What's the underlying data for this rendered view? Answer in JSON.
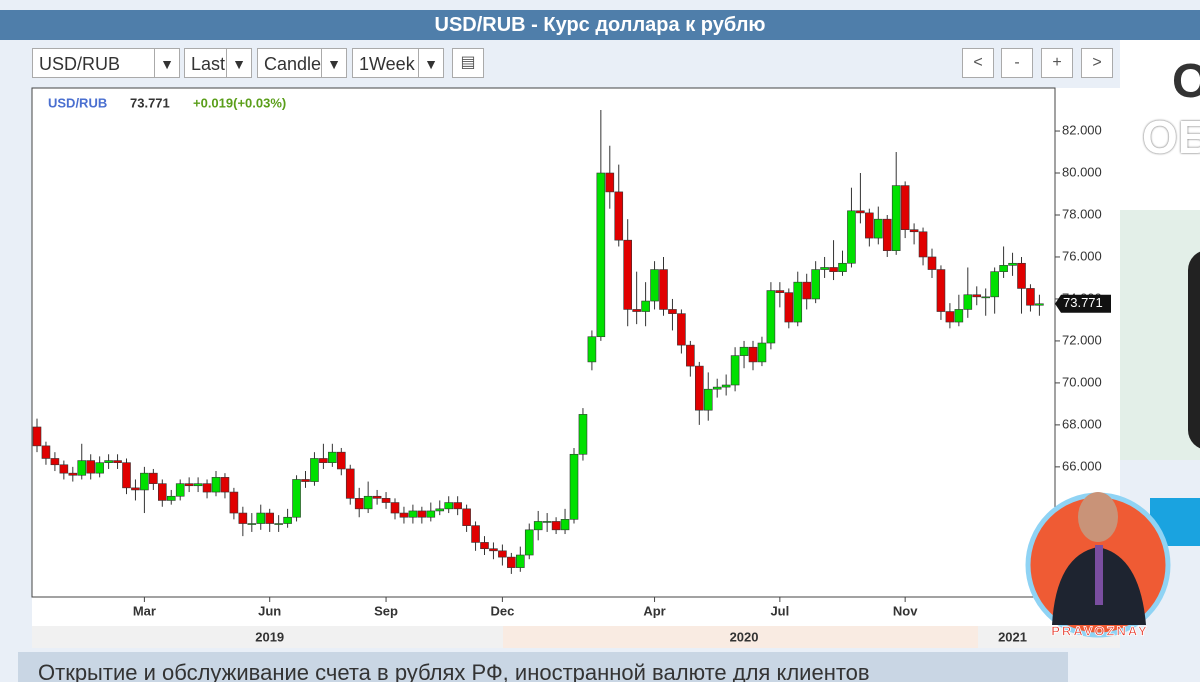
{
  "page_title": "USD/RUB - Курс доллара к рублю",
  "toolbar": {
    "symbol": "USD/RUB",
    "field": "Last",
    "style": "Candle",
    "period": "1Week",
    "buttons": [
      "<",
      "-",
      "+",
      ">"
    ]
  },
  "legend": {
    "symbol": "USD/RUB",
    "last": "73.771",
    "change": "+0.019(+0.03%)"
  },
  "side_ad": {
    "line1": "О",
    "line2": "ОБС"
  },
  "bottom_banner": "Открытие и обслуживание счета в рублях РФ, иностранной валюте для клиентов",
  "watermark": "PRAVOZNAY",
  "chart_data": {
    "type": "candlestick",
    "up_color": "#00e000",
    "down_color": "#e00000",
    "ylim": [
      59.8,
      84.05
    ],
    "yticks": [
      {
        "value": 66,
        "label": "66.000"
      },
      {
        "value": 68,
        "label": "68.000"
      },
      {
        "value": 70,
        "label": "70.000"
      },
      {
        "value": 72,
        "label": "72.000"
      },
      {
        "value": 74,
        "label": "74.000"
      },
      {
        "value": 76,
        "label": "76.000"
      },
      {
        "value": 78,
        "label": "78.000"
      },
      {
        "value": 80,
        "label": "80.000"
      },
      {
        "value": 82,
        "label": "82.000"
      }
    ],
    "categories": [
      null,
      null,
      null,
      null,
      null,
      null,
      null,
      null,
      null,
      null,
      null,
      null,
      "Mar",
      null,
      null,
      null,
      null,
      null,
      null,
      null,
      null,
      null,
      null,
      null,
      null,
      null,
      "Jun",
      null,
      null,
      null,
      null,
      null,
      null,
      null,
      null,
      null,
      null,
      null,
      null,
      "Sep",
      null,
      null,
      null,
      null,
      null,
      null,
      null,
      null,
      null,
      null,
      null,
      null,
      "Dec",
      null,
      null,
      null,
      null,
      null,
      null,
      null,
      null,
      null,
      null,
      null,
      null,
      null,
      null,
      null,
      null,
      "Apr",
      null,
      null,
      null,
      null,
      null,
      null,
      null,
      null,
      null,
      null,
      null,
      null,
      null,
      "Jul",
      null,
      null,
      null,
      null,
      null,
      null,
      null,
      null,
      null,
      null,
      null,
      null,
      null,
      "Nov",
      null,
      null,
      null,
      null,
      null,
      null,
      null,
      null,
      null,
      null,
      null,
      null,
      null,
      null,
      null
    ],
    "year_categories": [
      null,
      null,
      null,
      null,
      null,
      null,
      null,
      null,
      null,
      null,
      null,
      null,
      null,
      null,
      null,
      null,
      null,
      null,
      null,
      null,
      null,
      null,
      null,
      null,
      null,
      null,
      "2019",
      null,
      null,
      null,
      null,
      null,
      null,
      null,
      null,
      null,
      null,
      null,
      null,
      null,
      null,
      null,
      null,
      null,
      null,
      null,
      null,
      null,
      null,
      null,
      null,
      null,
      null,
      null,
      null,
      null,
      null,
      null,
      null,
      null,
      null,
      null,
      null,
      null,
      null,
      null,
      null,
      null,
      null,
      null,
      null,
      null,
      null,
      null,
      null,
      null,
      null,
      null,
      null,
      "2020",
      null,
      null,
      null,
      null,
      null,
      null,
      null,
      null,
      null,
      null,
      null,
      null,
      null,
      null,
      null,
      null,
      null,
      null,
      null,
      null,
      null,
      null,
      null,
      null,
      null,
      null,
      null,
      null,
      null,
      "2021",
      null,
      null,
      null
    ],
    "open": [
      67.9,
      67.0,
      66.4,
      66.1,
      65.7,
      65.6,
      66.3,
      65.7,
      66.2,
      66.3,
      66.2,
      65.0,
      64.9,
      65.7,
      65.2,
      64.4,
      64.6,
      65.2,
      65.1,
      65.2,
      64.8,
      65.5,
      64.8,
      63.8,
      63.3,
      63.3,
      63.8,
      63.3,
      63.3,
      63.6,
      65.4,
      65.3,
      66.4,
      66.2,
      66.7,
      65.9,
      64.5,
      64.0,
      64.6,
      64.5,
      64.3,
      63.8,
      63.6,
      63.9,
      63.6,
      63.9,
      64.0,
      64.3,
      64.0,
      63.2,
      62.4,
      62.1,
      62.0,
      61.7,
      61.2,
      61.8,
      63.0,
      63.4,
      63.4,
      63.0,
      63.5,
      66.6,
      71.0,
      72.2,
      80.0,
      79.1,
      76.8,
      73.5,
      73.4,
      73.9,
      75.4,
      73.5,
      73.3,
      71.8,
      70.8,
      68.7,
      69.7,
      69.8,
      69.9,
      71.3,
      71.7,
      71.0,
      71.9,
      74.4,
      74.3,
      72.9,
      74.8,
      74.0,
      75.4,
      75.5,
      75.3,
      75.7,
      78.2,
      78.1,
      76.9,
      77.8,
      76.3,
      79.4,
      77.3,
      77.2,
      76.0,
      75.4,
      73.4,
      72.9,
      73.5,
      74.2,
      74.1,
      74.1,
      75.3,
      75.6,
      75.7,
      74.5,
      73.7
    ],
    "high": [
      68.3,
      67.2,
      66.7,
      66.3,
      66.0,
      67.1,
      66.6,
      66.5,
      66.6,
      66.6,
      66.4,
      65.4,
      66.0,
      65.9,
      65.4,
      64.9,
      65.4,
      65.5,
      65.5,
      65.4,
      65.8,
      65.7,
      65.0,
      64.1,
      63.8,
      64.2,
      64.0,
      63.7,
      64.0,
      65.6,
      65.8,
      66.7,
      67.1,
      67.1,
      66.9,
      66.1,
      65.0,
      65.3,
      64.9,
      64.8,
      64.5,
      64.1,
      64.2,
      64.1,
      64.3,
      64.4,
      64.6,
      64.6,
      64.2,
      63.4,
      62.7,
      62.4,
      62.3,
      61.9,
      62.2,
      63.3,
      63.9,
      63.8,
      63.6,
      64.0,
      66.9,
      68.8,
      72.5,
      83.0,
      81.3,
      80.4,
      77.8,
      75.3,
      74.8,
      75.8,
      76.0,
      74.0,
      73.5,
      72.0,
      71.0,
      70.5,
      70.2,
      70.4,
      71.7,
      72.0,
      72.0,
      72.2,
      74.8,
      74.8,
      74.5,
      75.3,
      75.2,
      75.8,
      76.0,
      76.8,
      76.3,
      79.3,
      80.0,
      78.3,
      78.4,
      78.0,
      81.0,
      79.6,
      77.6,
      77.4,
      76.4,
      75.6,
      73.8,
      74.2,
      75.5,
      74.6,
      74.5,
      75.5,
      76.5,
      76.2,
      76.0,
      74.7,
      74.2
    ],
    "low": [
      66.7,
      66.1,
      65.8,
      65.4,
      65.3,
      65.4,
      65.4,
      65.5,
      65.9,
      65.9,
      64.7,
      64.4,
      63.8,
      64.9,
      64.1,
      64.2,
      64.4,
      64.8,
      64.8,
      64.5,
      64.6,
      64.5,
      63.5,
      62.7,
      62.9,
      63.0,
      62.9,
      62.9,
      63.1,
      63.4,
      65.0,
      65.1,
      65.9,
      66.0,
      65.6,
      64.2,
      63.6,
      63.8,
      64.2,
      64.0,
      63.5,
      63.3,
      63.3,
      63.3,
      63.4,
      63.7,
      63.8,
      63.7,
      62.9,
      62.0,
      61.8,
      61.6,
      61.3,
      60.9,
      61.0,
      61.6,
      62.5,
      62.9,
      62.8,
      62.8,
      63.3,
      66.3,
      70.6,
      72.0,
      78.3,
      76.5,
      72.7,
      72.8,
      72.7,
      73.5,
      73.2,
      72.5,
      71.4,
      70.3,
      68.0,
      68.2,
      69.3,
      69.4,
      69.6,
      70.7,
      70.6,
      70.8,
      71.6,
      73.6,
      72.6,
      72.7,
      73.5,
      73.8,
      75.0,
      74.9,
      75.1,
      75.5,
      77.6,
      76.5,
      76.6,
      76.0,
      76.1,
      76.9,
      76.6,
      75.6,
      75.0,
      73.0,
      72.6,
      72.7,
      73.1,
      73.7,
      73.2,
      73.3,
      75.0,
      75.1,
      73.3,
      73.4,
      73.2
    ],
    "close": [
      67.0,
      66.4,
      66.1,
      65.7,
      65.6,
      66.3,
      65.7,
      66.2,
      66.3,
      66.2,
      65.0,
      64.9,
      65.7,
      65.2,
      64.4,
      64.6,
      65.2,
      65.1,
      65.2,
      64.8,
      65.5,
      64.8,
      63.8,
      63.3,
      63.3,
      63.8,
      63.3,
      63.3,
      63.6,
      65.4,
      65.3,
      66.4,
      66.2,
      66.7,
      65.9,
      64.5,
      64.0,
      64.6,
      64.5,
      64.3,
      63.8,
      63.6,
      63.9,
      63.6,
      63.9,
      64.0,
      64.3,
      64.0,
      63.2,
      62.4,
      62.1,
      62.0,
      61.7,
      61.2,
      61.8,
      63.0,
      63.4,
      63.4,
      63.0,
      63.5,
      66.6,
      68.5,
      72.2,
      80.0,
      79.1,
      76.8,
      73.5,
      73.4,
      73.9,
      75.4,
      73.5,
      73.3,
      71.8,
      70.8,
      68.7,
      69.7,
      69.8,
      69.9,
      71.3,
      71.7,
      71.0,
      71.9,
      74.4,
      74.3,
      72.9,
      74.8,
      74.0,
      75.4,
      75.5,
      75.3,
      75.7,
      78.2,
      78.1,
      76.9,
      77.8,
      76.3,
      79.4,
      77.3,
      77.2,
      76.0,
      75.4,
      73.4,
      72.9,
      73.5,
      74.2,
      74.1,
      74.1,
      75.3,
      75.6,
      75.7,
      74.5,
      73.7,
      73.771
    ]
  }
}
